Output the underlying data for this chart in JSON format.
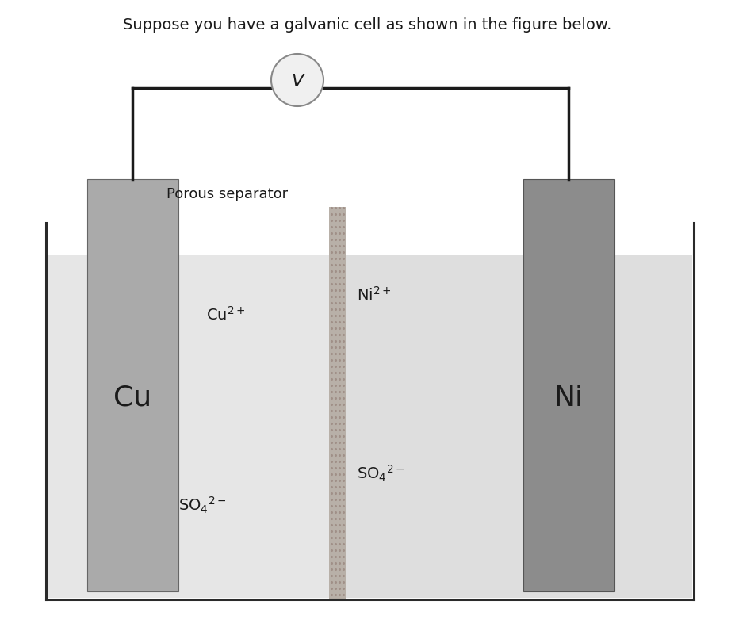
{
  "title": "Suppose you have a galvanic cell as shown in the figure below.",
  "title_fontsize": 14,
  "bg_color": "#ffffff",
  "solution_color_left": "#e8e8e8",
  "solution_color_right": "#e0e0e0",
  "electrode_cu_color": "#aaaaaa",
  "electrode_ni_color": "#909090",
  "separator_color": "#b0a8a0",
  "wire_color": "#1a1a1a",
  "cell_wall_color": "#2a2a2a",
  "voltmeter_face": "#f0f0f0",
  "voltmeter_edge": "#888888",
  "text_color": "#1a1a1a",
  "label_cu": "Cu",
  "label_ni": "Ni",
  "label_porous": "Porous separator",
  "label_v": "V",
  "fig_width": 9.27,
  "fig_height": 8.12,
  "dpi": 100
}
